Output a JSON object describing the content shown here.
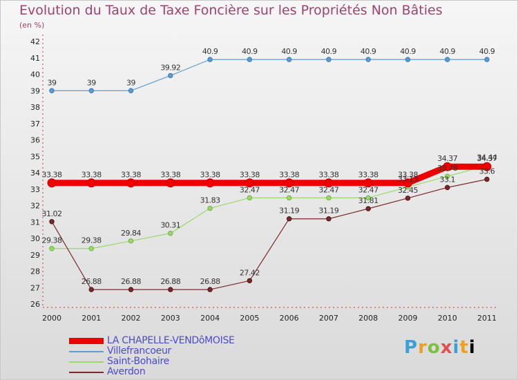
{
  "chart_data": {
    "type": "line",
    "title": "Evolution du Taux de Taxe Foncière sur les Propriétés Non Bâties",
    "subtitle": "(en %)",
    "xlabel": "",
    "ylabel": "",
    "x": [
      "2000",
      "2001",
      "2002",
      "2003",
      "2004",
      "2005",
      "2006",
      "2007",
      "2008",
      "2009",
      "2010",
      "2011"
    ],
    "ylim": [
      26,
      42
    ],
    "yticks": [
      "26",
      "27",
      "28",
      "29",
      "30",
      "31",
      "32",
      "33",
      "34",
      "35",
      "36",
      "37",
      "38",
      "39",
      "40",
      "41",
      "42"
    ],
    "grid": false,
    "legend_position": "bottom-left",
    "series": [
      {
        "name": "LA CHAPELLE-VENDôMOISE",
        "color": "#ee0000",
        "values": [
          33.38,
          33.38,
          33.38,
          33.38,
          33.38,
          33.38,
          33.38,
          33.38,
          33.38,
          33.38,
          34.37,
          34.37
        ],
        "labels": [
          "33.38",
          "33.38",
          "33.38",
          "33.38",
          "33.38",
          "33.38",
          "33.38",
          "33.38",
          "33.38",
          "33.38",
          "34.37",
          "34.37"
        ]
      },
      {
        "name": "Villefrancoeur",
        "color": "#5d9bd4",
        "values": [
          39,
          39,
          39,
          39.92,
          40.9,
          40.9,
          40.9,
          40.9,
          40.9,
          40.9,
          40.9,
          40.9
        ],
        "labels": [
          "39",
          "39",
          "39",
          "39.92",
          "40.9",
          "40.9",
          "40.9",
          "40.9",
          "40.9",
          "40.9",
          "40.9",
          "40.9"
        ]
      },
      {
        "name": "Saint-Bohaire",
        "color": "#99d96b",
        "values": [
          29.38,
          29.38,
          29.84,
          30.31,
          31.83,
          32.47,
          32.47,
          32.47,
          32.47,
          33.13,
          33.78,
          34.44
        ],
        "labels": [
          "29.38",
          "29.38",
          "29.84",
          "30.31",
          "31.83",
          "32.47",
          "32.47",
          "32.47",
          "32.47",
          "33.13",
          "33.78",
          "34.44"
        ]
      },
      {
        "name": "Averdon",
        "color": "#7a2a2a",
        "values": [
          31.02,
          26.88,
          26.88,
          26.88,
          26.88,
          27.42,
          31.19,
          31.19,
          31.81,
          32.45,
          33.1,
          33.6
        ],
        "labels": [
          "31.02",
          "26.88",
          "26.88",
          "26.88",
          "26.88",
          "27.42",
          "31.19",
          "31.19",
          "31.81",
          "32.45",
          "33.1",
          "33.6"
        ]
      }
    ]
  },
  "logo_text": "Proxiti"
}
